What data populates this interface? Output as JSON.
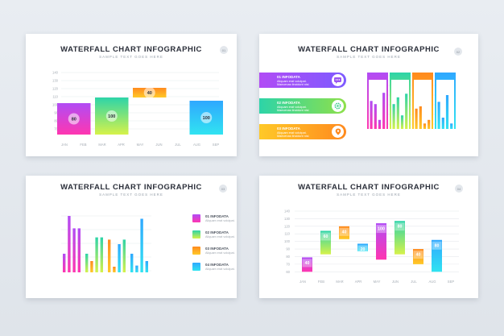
{
  "colors": {
    "purple": "#b14cf5",
    "magenta": "#ff36b0",
    "teal": "#2dd4a8",
    "green": "#8ee04a",
    "orange": "#ff8a1e",
    "yellow": "#ffc928",
    "blue": "#2fa8ff",
    "cyan": "#31e3f1"
  },
  "cards": [
    {
      "title": "WATERFALL CHART INFOGRAPHIC",
      "subtitle": "SAMPLE TEXT GOES HERE",
      "badge": "01"
    },
    {
      "title": "WATERFALL CHART INFOGRAPHIC",
      "subtitle": "SAMPLE TEXT GOES HERE",
      "badge": "02"
    },
    {
      "title": "WATERFALL CHART INFOGRAPHIC",
      "subtitle": "SAMPLE TEXT GOES HERE",
      "badge": "03"
    },
    {
      "title": "WATERFALL CHART INFOGRAPHIC",
      "subtitle": "SAMPLE TEXT GOES HERE",
      "badge": "04"
    }
  ],
  "infodata": [
    {
      "title": "01 INFODATA",
      "desc1": "Aliquam erat volutpat.",
      "desc2": "Maecenas tincidunt nisi",
      "icon": "chat-icon"
    },
    {
      "title": "02 INFODATA",
      "desc1": "Aliquam erat volutpat.",
      "desc2": "Maecenas tincidunt nisi",
      "icon": "gear-icon"
    },
    {
      "title": "03 INFODATA",
      "desc1": "Aliquam erat volutpat.",
      "desc2": "Maecenas tincidunt nisi",
      "icon": "location-pin-icon"
    },
    {
      "title": "04 INFODATA",
      "desc1": "Aliquam erat volutpat.",
      "desc2": "Maecenas tincidunt nisi",
      "icon": ""
    }
  ],
  "chart_data": [
    {
      "type": "bar",
      "subtype": "waterfall",
      "categories": [
        "JAN",
        "FEB",
        "MAR",
        "APR",
        "MAY",
        "JUN",
        "JUL",
        "AUG",
        "SEP"
      ],
      "yticks": [
        140,
        130,
        120,
        110,
        100,
        90,
        80,
        70
      ],
      "ylim": [
        60,
        140
      ],
      "bars": [
        {
          "label": "80",
          "start_index": 0,
          "end_index": 1,
          "low": 63,
          "high": 102,
          "gradient": [
            "#b14cf5",
            "#ff36b0"
          ]
        },
        {
          "label": "100",
          "start_index": 2,
          "end_index": 3,
          "low": 63,
          "high": 109,
          "gradient": [
            "#2dd4a8",
            "#d6f24a"
          ]
        },
        {
          "label": "40",
          "start_index": 4,
          "end_index": 5,
          "low": 109,
          "high": 121,
          "gradient": [
            "#ff8a1e",
            "#ffc928"
          ]
        },
        {
          "label": "100",
          "start_index": 7,
          "end_index": 8,
          "low": 63,
          "high": 105,
          "gradient": [
            "#2fa8ff",
            "#31e3f1"
          ]
        }
      ],
      "grid": true
    },
    {
      "type": "bar",
      "categories": [
        "",
        "",
        "",
        ""
      ],
      "groups": [
        {
          "gradient": [
            "#b14cf5",
            "#ff36b0"
          ],
          "values": [
            0.62,
            0.55,
            0.2,
            0.8
          ]
        },
        {
          "gradient": [
            "#2dd4a8",
            "#d6f24a"
          ],
          "values": [
            0.55,
            0.7,
            0.3,
            0.78
          ]
        },
        {
          "gradient": [
            "#ff8a1e",
            "#ffc928"
          ],
          "values": [
            0.45,
            0.5,
            0.12,
            0.2
          ]
        },
        {
          "gradient": [
            "#2fa8ff",
            "#31e3f1"
          ],
          "values": [
            0.6,
            0.25,
            0.75,
            0.12
          ]
        }
      ],
      "grid": true
    },
    {
      "type": "bar",
      "categories": [
        "",
        "",
        "",
        ""
      ],
      "yticks": [
        "",
        "",
        "",
        "",
        ""
      ],
      "groups": [
        {
          "values": [
            0.33,
            1.0,
            0.78,
            0.78
          ],
          "gradients": [
            [
              "#b14cf5",
              "#ff36b0"
            ],
            [
              "#b14cf5",
              "#ff36b0"
            ],
            [
              "#b14cf5",
              "#ff36b0"
            ],
            [
              "#b14cf5",
              "#ff36b0"
            ]
          ]
        },
        {
          "values": [
            0.33,
            0.2,
            0.62,
            0.62
          ],
          "gradients": [
            [
              "#2dd4a8",
              "#d6f24a"
            ],
            [
              "#ff8a1e",
              "#ffc928"
            ],
            [
              "#2dd4a8",
              "#d6f24a"
            ],
            [
              "#2dd4a8",
              "#d6f24a"
            ]
          ]
        },
        {
          "values": [
            0.58,
            0.1,
            0.5,
            0.58
          ],
          "gradients": [
            [
              "#ff8a1e",
              "#ffc928"
            ],
            [
              "#ff8a1e",
              "#ffc928"
            ],
            [
              "#2fa8ff",
              "#31e3f1"
            ],
            [
              "#2dd4a8",
              "#d6f24a"
            ]
          ]
        },
        {
          "values": [
            0.33,
            0.12,
            0.95,
            0.2
          ],
          "gradients": [
            [
              "#2fa8ff",
              "#31e3f1"
            ],
            [
              "#2fa8ff",
              "#31e3f1"
            ],
            [
              "#2fa8ff",
              "#31e3f1"
            ],
            [
              "#2fa8ff",
              "#31e3f1"
            ]
          ]
        }
      ],
      "grid": true
    },
    {
      "type": "bar",
      "subtype": "waterfall",
      "categories": [
        "JAN",
        "FEB",
        "MAR",
        "APR",
        "MAY",
        "JUN",
        "JUL",
        "AUG",
        "SEP"
      ],
      "yticks": [
        140,
        130,
        120,
        110,
        100,
        90,
        80,
        70,
        60
      ],
      "ylim": [
        55,
        140
      ],
      "bars": [
        {
          "label": "40",
          "low": 60,
          "high": 79,
          "gradient": [
            "#b14cf5",
            "#ff36b0"
          ]
        },
        {
          "label": "60",
          "low": 83,
          "high": 114,
          "gradient": [
            "#2dd4a8",
            "#d6f24a"
          ]
        },
        {
          "label": "40",
          "low": 103,
          "high": 120,
          "gradient": [
            "#ff8a1e",
            "#ffc928"
          ]
        },
        {
          "label": "20",
          "low": 87,
          "high": 97,
          "gradient": [
            "#2fa8ff",
            "#31e3f1"
          ]
        },
        {
          "label": "100",
          "low": 76,
          "high": 124,
          "gradient": [
            "#b14cf5",
            "#ff36b0"
          ]
        },
        {
          "label": "80",
          "low": 83,
          "high": 127,
          "gradient": [
            "#2dd4a8",
            "#d6f24a"
          ]
        },
        {
          "label": "40",
          "low": 70,
          "high": 90,
          "gradient": [
            "#ff8a1e",
            "#ffc928"
          ]
        },
        {
          "label": "80",
          "low": 60,
          "high": 102,
          "gradient": [
            "#2fa8ff",
            "#31e3f1"
          ]
        }
      ],
      "grid": true
    }
  ]
}
